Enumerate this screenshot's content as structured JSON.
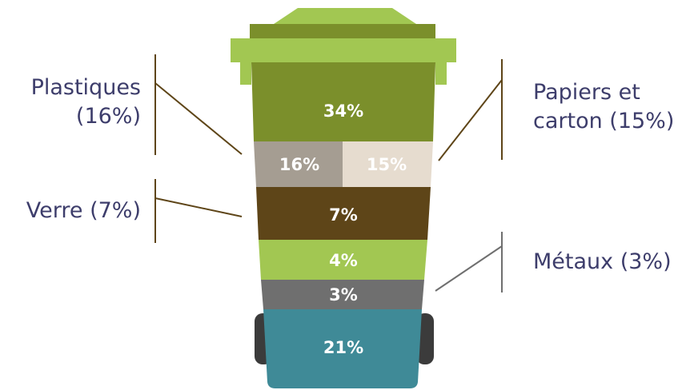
{
  "bin": {
    "segments": [
      {
        "id": "top",
        "label": "34%",
        "value": 34,
        "color": "#7b8f2b"
      },
      {
        "id": "plastiques",
        "label": "16%",
        "value": 16,
        "color": "#a59d92"
      },
      {
        "id": "papiers",
        "label": "15%",
        "value": 15,
        "color": "#e6dccf"
      },
      {
        "id": "verre",
        "label": "7%",
        "value": 7,
        "color": "#5e4518"
      },
      {
        "id": "light-green",
        "label": "4%",
        "value": 4,
        "color": "#a2c752"
      },
      {
        "id": "metaux",
        "label": "3%",
        "value": 3,
        "color": "#6f6f6f"
      },
      {
        "id": "bottom",
        "label": "21%",
        "value": 21,
        "color": "#3f8a97"
      }
    ],
    "lid_color": "#a2c752",
    "lid_dark_color": "#7b8f2b",
    "wheel_color": "#3b3b3b"
  },
  "callouts": {
    "plastiques": "Plastiques (16%)",
    "plastiques_line1": "Plastiques",
    "plastiques_line2": "(16%)",
    "verre": "Verre (7%)",
    "papiers_line1": "Papiers et",
    "papiers_line2": "carton (15%)",
    "metaux": "Métaux (3%)"
  },
  "colors": {
    "text": "#3d3d6b",
    "leader_brown": "#5e4518",
    "leader_gray": "#6f6f6f"
  }
}
